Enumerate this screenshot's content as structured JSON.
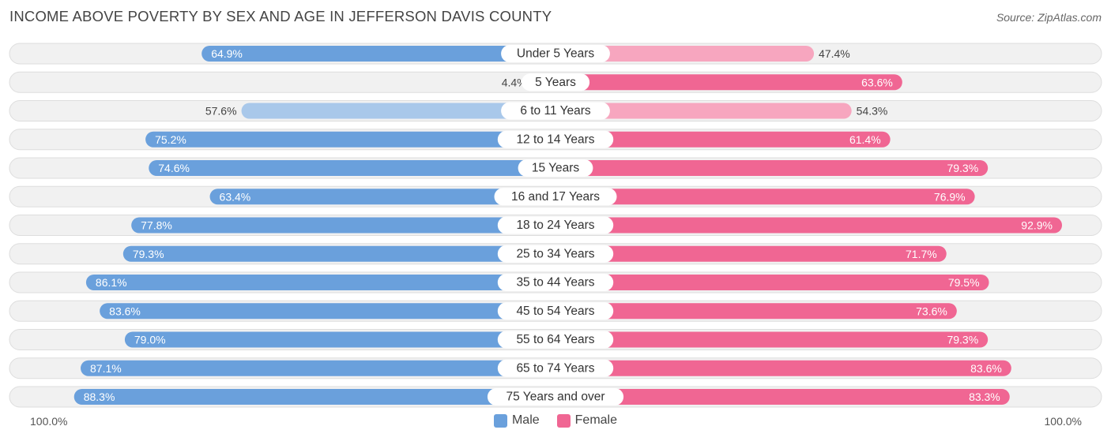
{
  "header": {
    "title": "INCOME ABOVE POVERTY BY SEX AND AGE IN JEFFERSON DAVIS COUNTY",
    "source": "Source: ZipAtlas.com"
  },
  "axis": {
    "left_label": "100.0%",
    "right_label": "100.0%"
  },
  "legend": {
    "male_label": "Male",
    "female_label": "Female"
  },
  "colors": {
    "male_strong": "#6aa0dc",
    "male_light": "#a9c8ea",
    "female_strong": "#f06693",
    "female_light": "#f7a6bf",
    "row_bg": "#f1f1f1",
    "row_border": "#dddddd"
  },
  "chart_data": {
    "type": "bar",
    "orientation": "horizontal-diverging",
    "title": "INCOME ABOVE POVERTY BY SEX AND AGE IN JEFFERSON DAVIS COUNTY",
    "xlim": [
      0,
      100
    ],
    "categories": [
      "Under 5 Years",
      "5 Years",
      "6 to 11 Years",
      "12 to 14 Years",
      "15 Years",
      "16 and 17 Years",
      "18 to 24 Years",
      "25 to 34 Years",
      "35 to 44 Years",
      "45 to 54 Years",
      "55 to 64 Years",
      "65 to 74 Years",
      "75 Years and over"
    ],
    "series": [
      {
        "name": "Male",
        "values": [
          64.9,
          4.4,
          57.6,
          75.2,
          74.6,
          63.4,
          77.8,
          79.3,
          86.1,
          83.6,
          79.0,
          87.1,
          88.3
        ],
        "labels": [
          "64.9%",
          "4.4%",
          "57.6%",
          "75.2%",
          "74.6%",
          "63.4%",
          "77.8%",
          "79.3%",
          "86.1%",
          "83.6%",
          "79.0%",
          "87.1%",
          "88.3%"
        ]
      },
      {
        "name": "Female",
        "values": [
          47.4,
          63.6,
          54.3,
          61.4,
          79.3,
          76.9,
          92.9,
          71.7,
          79.5,
          73.6,
          79.3,
          83.6,
          83.3
        ],
        "labels": [
          "47.4%",
          "63.6%",
          "54.3%",
          "61.4%",
          "79.3%",
          "76.9%",
          "92.9%",
          "71.7%",
          "79.5%",
          "73.6%",
          "79.3%",
          "83.6%",
          "83.3%"
        ]
      }
    ]
  }
}
